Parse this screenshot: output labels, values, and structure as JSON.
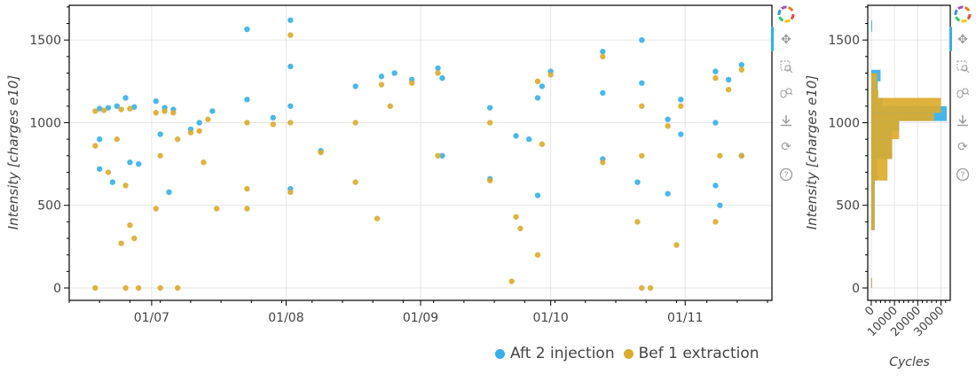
{
  "colors": {
    "aft": "#35b0e8",
    "bef": "#dcab2c",
    "grid": "#e6e6e6",
    "axis": "#000000",
    "text": "#444444"
  },
  "toolbar_icons": [
    "bokeh-logo-icon",
    "pan-icon",
    "box-zoom-icon",
    "wheel-zoom-icon",
    "save-icon",
    "reset-icon",
    "help-icon"
  ],
  "legend": [
    {
      "name": "Aft 2 injection",
      "color": "#35b0e8"
    },
    {
      "name": "Bef 1 extraction",
      "color": "#dcab2c"
    }
  ],
  "chart_data": [
    {
      "type": "scatter",
      "title": "",
      "xlabel": "",
      "ylabel": "Intensity [charges e10]",
      "x_axis": "date",
      "xlim": [
        "2018-06-12",
        "2018-11-21"
      ],
      "ylim": [
        -75,
        1710
      ],
      "x_ticks": [
        "01/07",
        "01/08",
        "01/09",
        "01/10",
        "01/11"
      ],
      "y_ticks": [
        0,
        500,
        1000,
        1500
      ],
      "grid": true,
      "legend_position": "bottom-right",
      "series": [
        {
          "name": "Aft 2 injection",
          "color": "#35b0e8",
          "points": [
            [
              "2018-06-19",
              1085
            ],
            [
              "2018-06-21",
              1090
            ],
            [
              "2018-06-23",
              1100
            ],
            [
              "2018-06-25",
              1150
            ],
            [
              "2018-06-27",
              1095
            ],
            [
              "2018-06-19",
              720
            ],
            [
              "2018-06-22",
              640
            ],
            [
              "2018-06-26",
              760
            ],
            [
              "2018-06-28",
              750
            ],
            [
              "2018-06-19",
              900
            ],
            [
              "2018-07-02",
              1130
            ],
            [
              "2018-07-04",
              1090
            ],
            [
              "2018-07-06",
              1080
            ],
            [
              "2018-07-03",
              930
            ],
            [
              "2018-07-05",
              580
            ],
            [
              "2018-07-10",
              960
            ],
            [
              "2018-07-12",
              1000
            ],
            [
              "2018-07-15",
              1070
            ],
            [
              "2018-07-23",
              1565
            ],
            [
              "2018-07-23",
              1140
            ],
            [
              "2018-07-29",
              1030
            ],
            [
              "2018-08-02",
              1620
            ],
            [
              "2018-08-02",
              1340
            ],
            [
              "2018-08-02",
              1100
            ],
            [
              "2018-08-02",
              600
            ],
            [
              "2018-08-09",
              830
            ],
            [
              "2018-08-17",
              1220
            ],
            [
              "2018-08-23",
              1280
            ],
            [
              "2018-08-26",
              1300
            ],
            [
              "2018-08-30",
              1260
            ],
            [
              "2018-09-05",
              1330
            ],
            [
              "2018-09-06",
              1270
            ],
            [
              "2018-09-06",
              800
            ],
            [
              "2018-09-17",
              1090
            ],
            [
              "2018-09-17",
              660
            ],
            [
              "2018-09-23",
              920
            ],
            [
              "2018-09-26",
              900
            ],
            [
              "2018-09-28",
              1150
            ],
            [
              "2018-09-28",
              560
            ],
            [
              "2018-09-29",
              1220
            ],
            [
              "2018-10-01",
              1310
            ],
            [
              "2018-10-13",
              1430
            ],
            [
              "2018-10-13",
              1180
            ],
            [
              "2018-10-13",
              780
            ],
            [
              "2018-10-22",
              1500
            ],
            [
              "2018-10-22",
              1240
            ],
            [
              "2018-10-21",
              640
            ],
            [
              "2018-10-28",
              1020
            ],
            [
              "2018-10-28",
              570
            ],
            [
              "2018-10-31",
              1140
            ],
            [
              "2018-10-31",
              930
            ],
            [
              "2018-11-08",
              1310
            ],
            [
              "2018-11-08",
              1000
            ],
            [
              "2018-11-08",
              620
            ],
            [
              "2018-11-09",
              500
            ],
            [
              "2018-11-14",
              1350
            ],
            [
              "2018-11-14",
              800
            ],
            [
              "2018-11-11",
              1260
            ]
          ]
        },
        {
          "name": "Bef 1 extraction",
          "color": "#dcab2c",
          "points": [
            [
              "2018-06-18",
              1070
            ],
            [
              "2018-06-20",
              1075
            ],
            [
              "2018-06-24",
              1080
            ],
            [
              "2018-06-26",
              1085
            ],
            [
              "2018-06-18",
              860
            ],
            [
              "2018-06-21",
              700
            ],
            [
              "2018-06-23",
              900
            ],
            [
              "2018-06-25",
              620
            ],
            [
              "2018-06-26",
              380
            ],
            [
              "2018-06-27",
              300
            ],
            [
              "2018-06-24",
              270
            ],
            [
              "2018-06-18",
              0
            ],
            [
              "2018-06-25",
              0
            ],
            [
              "2018-06-28",
              0
            ],
            [
              "2018-07-02",
              1060
            ],
            [
              "2018-07-04",
              1070
            ],
            [
              "2018-07-06",
              1060
            ],
            [
              "2018-07-07",
              900
            ],
            [
              "2018-07-03",
              800
            ],
            [
              "2018-07-02",
              480
            ],
            [
              "2018-07-03",
              0
            ],
            [
              "2018-07-07",
              0
            ],
            [
              "2018-07-10",
              940
            ],
            [
              "2018-07-12",
              950
            ],
            [
              "2018-07-14",
              1020
            ],
            [
              "2018-07-13",
              760
            ],
            [
              "2018-07-16",
              480
            ],
            [
              "2018-07-23",
              1000
            ],
            [
              "2018-07-23",
              600
            ],
            [
              "2018-07-23",
              480
            ],
            [
              "2018-07-29",
              990
            ],
            [
              "2018-08-02",
              1530
            ],
            [
              "2018-08-02",
              1000
            ],
            [
              "2018-08-02",
              580
            ],
            [
              "2018-08-09",
              820
            ],
            [
              "2018-08-17",
              1000
            ],
            [
              "2018-08-17",
              640
            ],
            [
              "2018-08-23",
              1230
            ],
            [
              "2018-08-22",
              420
            ],
            [
              "2018-08-25",
              1100
            ],
            [
              "2018-08-30",
              1240
            ],
            [
              "2018-09-05",
              1300
            ],
            [
              "2018-09-05",
              800
            ],
            [
              "2018-09-17",
              1000
            ],
            [
              "2018-09-17",
              650
            ],
            [
              "2018-09-23",
              430
            ],
            [
              "2018-09-24",
              360
            ],
            [
              "2018-09-22",
              40
            ],
            [
              "2018-09-28",
              1250
            ],
            [
              "2018-09-28",
              200
            ],
            [
              "2018-09-29",
              870
            ],
            [
              "2018-10-01",
              1290
            ],
            [
              "2018-10-13",
              1400
            ],
            [
              "2018-10-13",
              760
            ],
            [
              "2018-10-21",
              400
            ],
            [
              "2018-10-22",
              1100
            ],
            [
              "2018-10-22",
              800
            ],
            [
              "2018-10-24",
              0
            ],
            [
              "2018-10-22",
              0
            ],
            [
              "2018-10-28",
              980
            ],
            [
              "2018-10-31",
              1100
            ],
            [
              "2018-10-30",
              260
            ],
            [
              "2018-11-08",
              1270
            ],
            [
              "2018-11-08",
              400
            ],
            [
              "2018-11-09",
              800
            ],
            [
              "2018-11-11",
              1200
            ],
            [
              "2018-11-14",
              1320
            ],
            [
              "2018-11-14",
              800
            ]
          ]
        }
      ]
    },
    {
      "type": "bar",
      "orientation": "horizontal",
      "title": "",
      "xlabel": "Cycles",
      "ylabel": "Intensity [charges e10]",
      "xlim": [
        -1500,
        34000
      ],
      "ylim": [
        -75,
        1710
      ],
      "x_ticks": [
        0,
        10000,
        20000,
        30000
      ],
      "y_ticks": [
        0,
        500,
        1000,
        1500
      ],
      "grid": true,
      "series": [
        {
          "name": "Aft 2 injection",
          "color": "#35b0e8",
          "bins": [
            [
              1550,
              1620,
              300
            ],
            [
              1250,
              1320,
              4000
            ],
            [
              1150,
              1250,
              2800
            ],
            [
              1100,
              1150,
              5000
            ],
            [
              1010,
              1100,
              32500
            ],
            [
              950,
              1010,
              12000
            ],
            [
              780,
              950,
              9000
            ],
            [
              650,
              780,
              2500
            ],
            [
              350,
              650,
              1500
            ],
            [
              0,
              60,
              200
            ]
          ]
        },
        {
          "name": "Bef 1 extraction",
          "color": "#dcab2c",
          "bins": [
            [
              1200,
              1300,
              2500
            ],
            [
              1150,
              1200,
              3000
            ],
            [
              1060,
              1150,
              30000
            ],
            [
              1010,
              1060,
              27000
            ],
            [
              900,
              1010,
              12000
            ],
            [
              780,
              900,
              9000
            ],
            [
              650,
              780,
              7000
            ],
            [
              350,
              650,
              1400
            ],
            [
              0,
              60,
              300
            ]
          ]
        }
      ]
    }
  ]
}
